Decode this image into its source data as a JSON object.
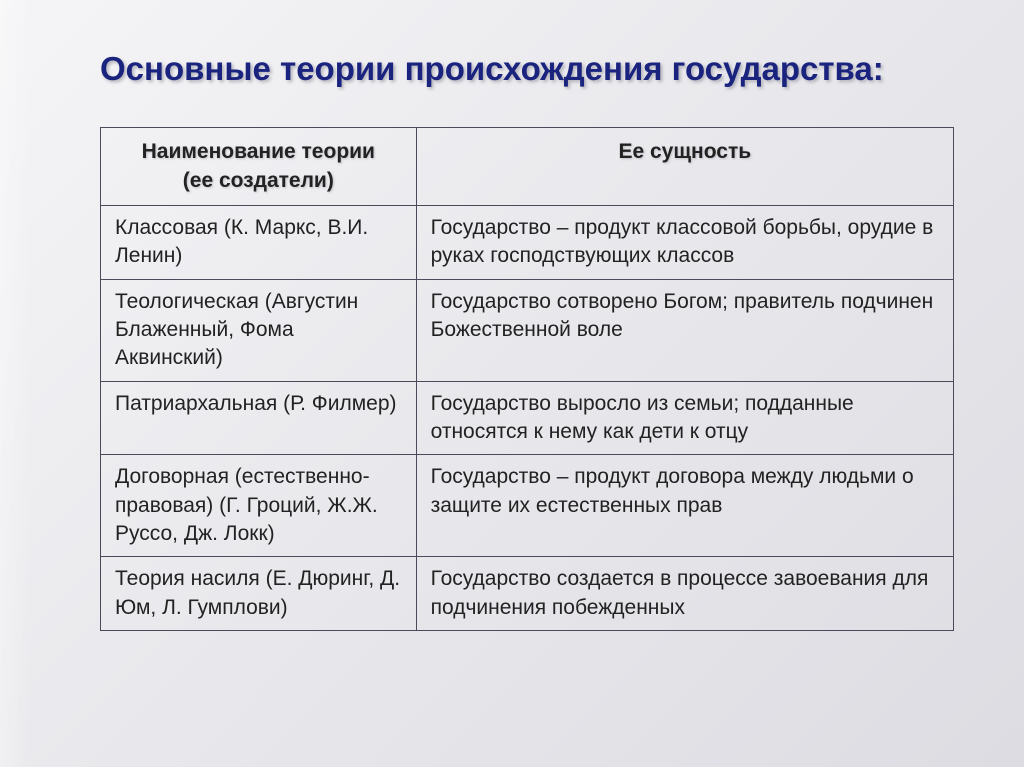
{
  "title": "Основные теории происхождения государства:",
  "table": {
    "header": {
      "col1_main": "Наименование теории",
      "col1_sub": "(ее создатели)",
      "col2": "Ее сущность"
    },
    "rows": [
      {
        "name": "Классовая (К. Маркс, В.И. Ленин)",
        "essence": "Государство – продукт классовой борьбы, орудие в руках господствующих классов"
      },
      {
        "name": "Теологическая (Августин Блаженный, Фома Аквинский)",
        "essence": "Государство сотворено Богом; правитель подчинен Божественной воле"
      },
      {
        "name": "Патриархальная (Р. Филмер)",
        "essence": "Государство выросло из семьи; подданные относятся к нему как дети к отцу"
      },
      {
        "name": "Договорная (естественно-правовая) (Г. Гроций, Ж.Ж. Руссо, Дж. Локк)",
        "essence": "Государство – продукт договора между людьми о защите их естественных прав"
      },
      {
        "name": "Теория насиля (Е. Дюринг, Д. Юм, Л. Гумплови)",
        "essence": "Государство создается в процессе завоевания для подчинения побежденных"
      }
    ]
  },
  "style": {
    "title_color": "#1a237e",
    "title_fontsize": 33,
    "cell_fontsize": 21,
    "border_color": "#4a4a5a",
    "text_color": "#222222",
    "background_gradient": [
      "#f5f5f7",
      "#e8e8ec",
      "#dcdce2"
    ],
    "col1_width_pct": 37
  }
}
